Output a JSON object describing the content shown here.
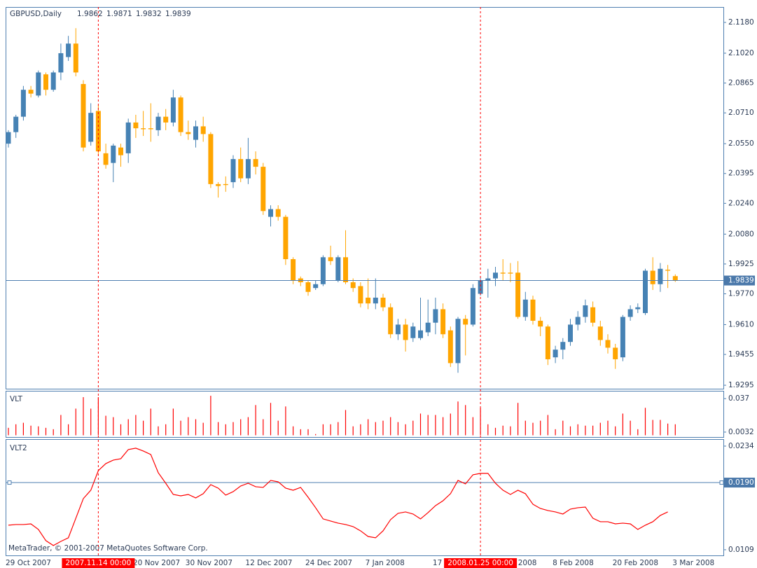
{
  "chart_data": [
    {
      "type": "candlestick",
      "title": "GBPUSD,Daily",
      "categories": [
        "29 Oct 2007",
        null,
        null,
        null,
        null,
        null,
        null,
        null,
        null,
        null,
        null,
        null,
        null,
        null,
        null,
        null,
        null,
        "20 Nov 2007",
        null,
        null,
        null,
        null,
        null,
        null,
        "30 Nov 2007",
        null,
        null,
        null,
        null,
        null,
        null,
        null,
        "12 Dec 2007",
        null,
        null,
        null,
        null,
        null,
        null,
        null,
        "24 Dec 2007",
        null,
        null,
        null,
        null,
        null,
        null,
        null,
        "7 Jan 2008",
        null,
        null,
        null,
        null,
        null,
        null,
        null,
        null,
        "17 Jan 2008",
        null,
        null,
        null,
        null,
        null,
        null,
        null,
        "29 Jan 2008",
        null,
        null,
        null,
        null,
        null,
        null,
        null,
        "8 Feb 2008",
        null,
        null,
        null,
        null,
        null,
        null,
        null,
        "20 Feb 2008",
        null,
        null,
        null,
        null,
        null,
        null,
        null,
        "3 Mar 2008"
      ],
      "open": [
        2.055,
        2.061,
        2.069,
        2.083,
        2.08,
        2.091,
        2.083,
        2.092,
        2.1,
        2.107,
        2.086,
        2.056,
        2.072,
        2.05,
        2.045,
        2.053,
        2.05,
        2.066,
        2.063,
        2.063,
        2.062,
        2.069,
        2.066,
        2.079,
        2.061,
        2.057,
        2.064,
        2.06,
        2.034,
        2.034,
        2.035,
        2.047,
        2.037,
        2.047,
        2.043,
        2.017,
        2.021,
        2.017,
        1.995,
        1.985,
        1.983,
        1.98,
        1.982,
        1.996,
        1.984,
        1.996,
        1.983,
        1.981,
        1.975,
        1.972,
        1.975,
        1.97,
        1.956,
        1.961,
        1.954,
        1.954,
        1.957,
        1.962,
        1.969,
        1.958,
        1.941,
        1.964,
        1.961,
        1.977,
        1.984,
        1.985,
        1.988,
        1.988,
        1.988,
        1.965,
        1.974,
        1.963,
        1.96,
        1.944,
        1.948,
        1.952,
        1.961,
        1.965,
        1.97,
        1.96,
        1.953,
        1.949,
        1.944,
        1.965,
        1.969,
        1.967,
        1.989,
        1.982,
        1.9895,
        1.9862
      ],
      "high": [
        2.062,
        2.07,
        2.085,
        2.085,
        2.093,
        2.092,
        2.093,
        2.107,
        2.111,
        2.115,
        2.088,
        2.076,
        2.075,
        2.055,
        2.055,
        2.055,
        2.068,
        2.07,
        2.072,
        2.076,
        2.071,
        2.073,
        2.083,
        2.08,
        2.067,
        2.067,
        2.069,
        2.061,
        2.035,
        2.038,
        2.049,
        2.053,
        2.058,
        2.051,
        2.045,
        2.023,
        2.023,
        2.018,
        1.996,
        1.986,
        1.984,
        1.984,
        1.997,
        2.002,
        1.997,
        2.01,
        1.985,
        1.983,
        1.985,
        1.985,
        1.977,
        1.972,
        1.964,
        1.964,
        1.962,
        1.975,
        1.974,
        1.975,
        1.972,
        1.96,
        1.965,
        1.966,
        1.982,
        1.986,
        1.99,
        1.991,
        1.995,
        1.993,
        1.994,
        1.978,
        1.976,
        1.965,
        1.961,
        1.95,
        1.954,
        1.964,
        1.968,
        1.974,
        1.973,
        1.963,
        1.956,
        1.951,
        1.966,
        1.971,
        1.972,
        1.99,
        1.996,
        1.993,
        1.992,
        1.9871
      ],
      "low": [
        2.053,
        2.058,
        2.067,
        2.079,
        2.079,
        2.08,
        2.082,
        2.088,
        2.098,
        2.09,
        2.051,
        2.054,
        2.049,
        2.042,
        2.035,
        2.043,
        2.045,
        2.058,
        2.059,
        2.056,
        2.059,
        2.062,
        2.064,
        2.059,
        2.057,
        2.053,
        2.056,
        2.032,
        2.027,
        2.03,
        2.032,
        2.035,
        2.034,
        2.039,
        2.018,
        2.012,
        2.015,
        1.992,
        1.982,
        1.981,
        1.976,
        1.979,
        1.981,
        1.992,
        1.983,
        1.982,
        1.978,
        1.97,
        1.969,
        1.969,
        1.968,
        1.954,
        1.953,
        1.947,
        1.952,
        1.953,
        1.955,
        1.956,
        1.954,
        1.939,
        1.936,
        1.945,
        1.96,
        1.976,
        1.975,
        1.981,
        1.984,
        1.983,
        1.964,
        1.963,
        1.961,
        1.955,
        1.94,
        1.941,
        1.943,
        1.95,
        1.958,
        1.962,
        1.96,
        1.95,
        1.946,
        1.938,
        1.942,
        1.963,
        1.967,
        1.966,
        1.979,
        1.978,
        1.98,
        1.9832
      ],
      "close": [
        2.061,
        2.069,
        2.083,
        2.081,
        2.092,
        2.083,
        2.092,
        2.102,
        2.107,
        2.092,
        2.053,
        2.071,
        2.051,
        2.044,
        2.054,
        2.049,
        2.066,
        2.063,
        2.0625,
        2.0625,
        2.069,
        2.066,
        2.079,
        2.061,
        2.06,
        2.064,
        2.06,
        2.034,
        2.033,
        2.0335,
        2.047,
        2.037,
        2.047,
        2.043,
        2.02,
        2.021,
        2.017,
        1.995,
        1.984,
        1.983,
        1.978,
        1.982,
        1.996,
        1.994,
        1.996,
        1.983,
        1.98,
        1.972,
        1.972,
        1.975,
        1.97,
        1.956,
        1.961,
        1.953,
        1.96,
        1.958,
        1.962,
        1.969,
        1.956,
        1.941,
        1.964,
        1.961,
        1.98,
        1.984,
        1.985,
        1.988,
        1.9875,
        1.9875,
        1.965,
        1.974,
        1.963,
        1.96,
        1.943,
        1.948,
        1.952,
        1.961,
        1.965,
        1.971,
        1.962,
        1.953,
        1.949,
        1.943,
        1.965,
        1.969,
        1.97,
        1.989,
        1.982,
        1.99,
        1.989,
        1.9839
      ],
      "up_color": "#4682b4",
      "down_color": "#ffa500",
      "ylim": [
        1.9277,
        2.126
      ],
      "yticks": [
        {
          "value": 2.118,
          "label": "2.1180"
        },
        {
          "value": 2.102,
          "label": "2.1020"
        },
        {
          "value": 2.0865,
          "label": "2.0865"
        },
        {
          "value": 2.071,
          "label": "2.0710"
        },
        {
          "value": 2.055,
          "label": "2.0550"
        },
        {
          "value": 2.0395,
          "label": "2.0395"
        },
        {
          "value": 2.024,
          "label": "2.0240"
        },
        {
          "value": 2.008,
          "label": "2.0080"
        },
        {
          "value": 1.9925,
          "label": "1.9925"
        },
        {
          "value": 1.977,
          "label": "1.9770"
        },
        {
          "value": 1.961,
          "label": "1.9610"
        },
        {
          "value": 1.9455,
          "label": "1.9455"
        },
        {
          "value": 1.9295,
          "label": "1.9295"
        }
      ],
      "current_price": {
        "value": 1.9839,
        "label": "1.9839"
      },
      "markers": [
        "2007.11.14 00:00",
        "2008.01.25 00:00"
      ]
    },
    {
      "type": "bar",
      "title": "VLT",
      "color": "#ff0000",
      "values": [
        0.0075,
        0.0111,
        0.0126,
        0.0097,
        0.009,
        0.0075,
        0.0061,
        0.0205,
        0.0111,
        0.0269,
        0.0385,
        0.0269,
        0.0385,
        0.0197,
        0.0183,
        0.0111,
        0.0162,
        0.0205,
        0.0147,
        0.0269,
        0.009,
        0.0111,
        0.0269,
        0.0147,
        0.0183,
        0.0162,
        0.0126,
        0.0399,
        0.0133,
        0.0111,
        0.0133,
        0.0162,
        0.0183,
        0.0305,
        0.0162,
        0.0327,
        0.0147,
        0.0291,
        0.009,
        0.0061,
        0.0061,
        0.0012,
        0.0111,
        0.0111,
        0.0133,
        0.0255,
        0.009,
        0.0111,
        0.0162,
        0.0133,
        0.0147,
        0.0183,
        0.0133,
        0.0111,
        0.0147,
        0.0219,
        0.0205,
        0.0205,
        0.0183,
        0.0219,
        0.0341,
        0.0305,
        0.0183,
        0.0277,
        0.0111,
        0.0075,
        0.0097,
        0.009,
        0.0327,
        0.0147,
        0.0126,
        0.0147,
        0.0205,
        0.0061,
        0.0147,
        0.009,
        0.0111,
        0.0097,
        0.0097,
        0.0126,
        0.0147,
        0.009,
        0.0219,
        0.0147,
        0.0061,
        0.0277,
        0.0155,
        0.0155,
        0.0118,
        0.0111
      ],
      "ylim": [
        -0.0018,
        0.0449
      ],
      "yticks": [
        0.037,
        0.0032
      ]
    },
    {
      "type": "line",
      "title": "VLT2",
      "color": "#ff0000",
      "values": [
        0.01386,
        0.01394,
        0.01394,
        0.01402,
        0.01335,
        0.012,
        0.01141,
        0.01191,
        0.01234,
        0.0147,
        0.01707,
        0.01808,
        0.02044,
        0.02129,
        0.02171,
        0.02188,
        0.02298,
        0.02315,
        0.02281,
        0.02239,
        0.02019,
        0.01892,
        0.01757,
        0.0174,
        0.01757,
        0.01715,
        0.01766,
        0.01875,
        0.01833,
        0.01749,
        0.01791,
        0.01859,
        0.01892,
        0.0185,
        0.01842,
        0.01926,
        0.01909,
        0.01833,
        0.01808,
        0.01842,
        0.01723,
        0.01597,
        0.01462,
        0.01436,
        0.01411,
        0.01394,
        0.01369,
        0.01318,
        0.0125,
        0.01234,
        0.01318,
        0.01453,
        0.01529,
        0.01546,
        0.01521,
        0.01462,
        0.01538,
        0.01622,
        0.01681,
        0.01766,
        0.01926,
        0.01884,
        0.01994,
        0.02011,
        0.02011,
        0.01892,
        0.01808,
        0.01757,
        0.01808,
        0.01766,
        0.01639,
        0.01588,
        0.01563,
        0.01546,
        0.01521,
        0.0158,
        0.01597,
        0.01605,
        0.0147,
        0.01428,
        0.01428,
        0.01402,
        0.01411,
        0.01402,
        0.01335,
        0.01386,
        0.01428,
        0.01504,
        0.01546,
        null
      ],
      "ylim": [
        0.01022,
        0.02424
      ],
      "yticks": [
        0.0234,
        0.0109
      ],
      "level": {
        "value": 0.019,
        "label": "0.0190"
      },
      "footer": "MetaTrader, © 2001-2007 MetaQuotes Software Corp."
    }
  ]
}
